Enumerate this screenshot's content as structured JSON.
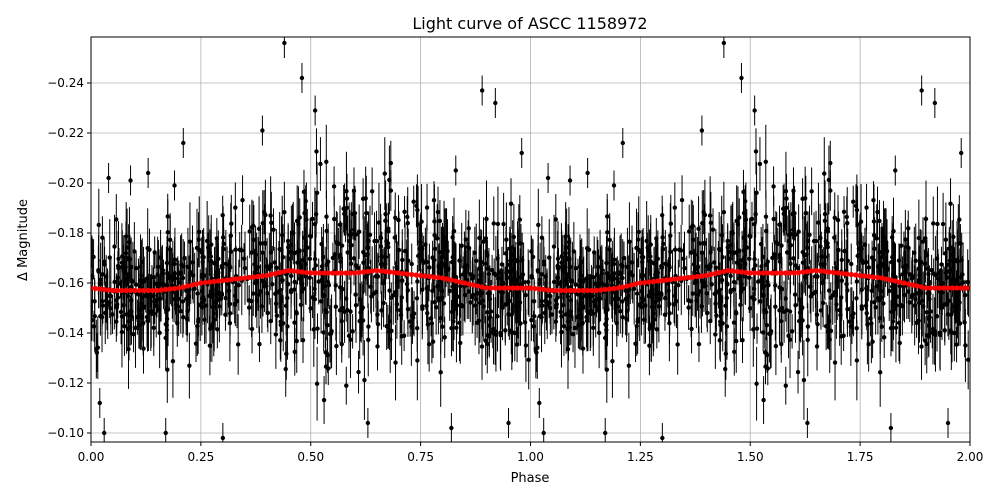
{
  "chart_data": {
    "type": "scatter",
    "title": "Light curve of ASCC 1158972",
    "xlabel": "Phase",
    "ylabel": "Δ Magnitude",
    "xlim": [
      0,
      2
    ],
    "ylim": [
      -0.0964,
      -0.2584
    ],
    "y_inverted": true,
    "grid": true,
    "x_ticks": [
      "0.00",
      "0.25",
      "0.50",
      "0.75",
      "1.00",
      "1.25",
      "1.50",
      "1.75",
      "2.00"
    ],
    "x_tick_values": [
      0,
      0.25,
      0.5,
      0.75,
      1.0,
      1.25,
      1.5,
      1.75,
      2.0
    ],
    "y_ticks": [
      "−0.24",
      "−0.22",
      "−0.20",
      "−0.18",
      "−0.16",
      "−0.14",
      "−0.12",
      "−0.10"
    ],
    "y_tick_values": [
      -0.24,
      -0.22,
      -0.2,
      -0.18,
      -0.16,
      -0.14,
      -0.12,
      -0.1
    ],
    "period_repeat": 1,
    "series": [
      {
        "role": "observations",
        "color": "#000000",
        "marker": "circle-with-errorbars",
        "band_center": "binned",
        "band_std": 0.012,
        "outliers": [
          [
            0.44,
            -0.256
          ],
          [
            0.48,
            -0.242
          ],
          [
            0.04,
            -0.202
          ],
          [
            0.09,
            -0.201
          ],
          [
            0.13,
            -0.204
          ],
          [
            0.21,
            -0.216
          ],
          [
            0.19,
            -0.199
          ],
          [
            0.89,
            -0.237
          ],
          [
            0.92,
            -0.232
          ],
          [
            0.83,
            -0.205
          ],
          [
            0.98,
            -0.212
          ],
          [
            0.03,
            -0.1
          ],
          [
            0.02,
            -0.112
          ],
          [
            0.17,
            -0.1
          ],
          [
            0.3,
            -0.098
          ],
          [
            0.63,
            -0.104
          ],
          [
            0.82,
            -0.102
          ],
          [
            0.95,
            -0.104
          ],
          [
            0.39,
            -0.221
          ],
          [
            0.51,
            -0.229
          ]
        ]
      },
      {
        "role": "binned",
        "color": "#ff0000",
        "phase": [
          0,
          0.05,
          0.1,
          0.15,
          0.2,
          0.25,
          0.3,
          0.35,
          0.4,
          0.45,
          0.5,
          0.55,
          0.6,
          0.65,
          0.7,
          0.75,
          0.8,
          0.85,
          0.9,
          0.95,
          1.0
        ],
        "magnitude": [
          -0.158,
          -0.157,
          -0.157,
          -0.157,
          -0.158,
          -0.16,
          -0.161,
          -0.162,
          -0.163,
          -0.165,
          -0.164,
          -0.164,
          -0.164,
          -0.165,
          -0.164,
          -0.163,
          -0.162,
          -0.16,
          -0.158,
          -0.158,
          -0.158
        ]
      }
    ]
  }
}
